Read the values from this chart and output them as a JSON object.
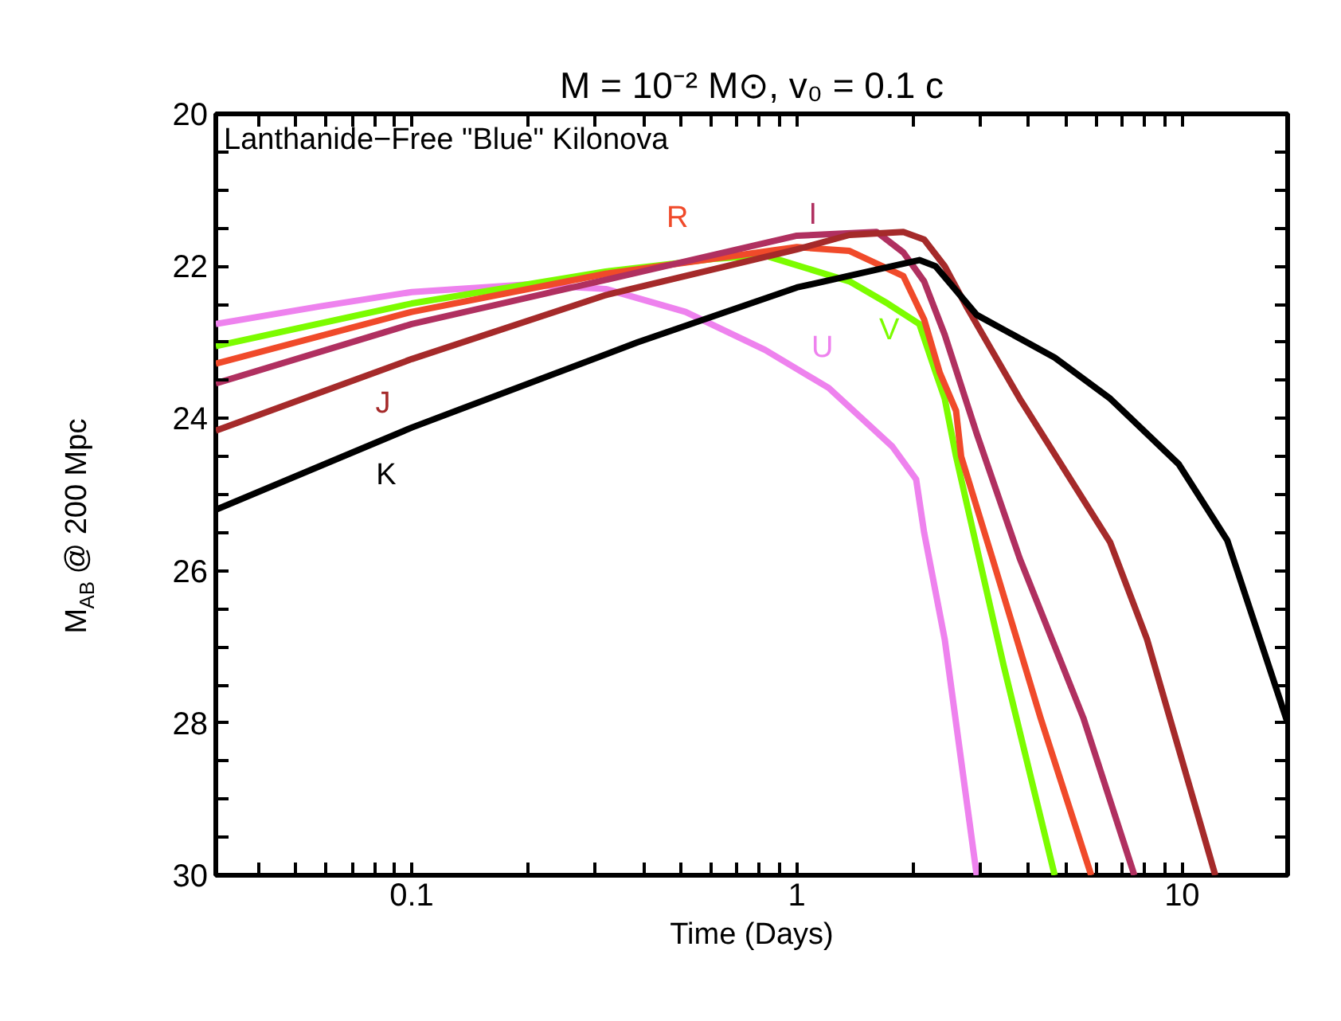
{
  "chart_data": {
    "type": "line",
    "title": "M = 10⁻² M⊙, v₀ = 0.1 c",
    "subtitle": "Lanthanide−Free \"Blue\" Kilonova",
    "xlabel": "Time (Days)",
    "ylabel": "M$_{AB}$ @ 200 Mpc",
    "log": "x",
    "grid": false,
    "line_style": "solid",
    "marker": "none",
    "xlim": [
      0.031,
      18.8
    ],
    "ylim": [
      30,
      20
    ],
    "xticks": [
      {
        "value": 0.04,
        "label": null
      },
      {
        "value": 0.05,
        "label": null
      },
      {
        "value": 0.06,
        "label": null
      },
      {
        "value": 0.07,
        "label": null
      },
      {
        "value": 0.08,
        "label": null
      },
      {
        "value": 0.09,
        "label": null
      },
      {
        "value": 0.1,
        "label": "0.1"
      },
      {
        "value": 0.2,
        "label": null
      },
      {
        "value": 0.3,
        "label": null
      },
      {
        "value": 0.4,
        "label": null
      },
      {
        "value": 0.5,
        "label": null
      },
      {
        "value": 0.6,
        "label": null
      },
      {
        "value": 0.7,
        "label": null
      },
      {
        "value": 0.8,
        "label": null
      },
      {
        "value": 0.9,
        "label": null
      },
      1,
      {
        "value": 2,
        "label": null
      },
      {
        "value": 3,
        "label": null
      },
      {
        "value": 4,
        "label": null
      },
      {
        "value": 5,
        "label": null
      },
      {
        "value": 6,
        "label": null
      },
      {
        "value": 7,
        "label": null
      },
      {
        "value": 8,
        "label": null
      },
      {
        "value": 9,
        "label": null
      },
      10
    ],
    "yticks": [
      20,
      {
        "value": 20.5,
        "label": null
      },
      {
        "value": 21,
        "label": null
      },
      {
        "value": 21.5,
        "label": null
      },
      22,
      {
        "value": 22.5,
        "label": null
      },
      {
        "value": 23,
        "label": null
      },
      {
        "value": 23.5,
        "label": null
      },
      24,
      {
        "value": 24.5,
        "label": null
      },
      {
        "value": 25,
        "label": null
      },
      {
        "value": 25.5,
        "label": null
      },
      26,
      {
        "value": 26.5,
        "label": null
      },
      {
        "value": 27,
        "label": null
      },
      {
        "value": 27.5,
        "label": null
      },
      28,
      {
        "value": 28.5,
        "label": null
      },
      {
        "value": 29,
        "label": null
      },
      {
        "value": 29.5,
        "label": null
      },
      30
    ],
    "series": [
      {
        "name": "U",
        "color": "#ee82ee",
        "x": [
          0.031,
          0.0575,
          0.1,
          0.199,
          0.319,
          0.514,
          0.827,
          1.21,
          1.77,
          2.04,
          2.14,
          2.42,
          2.93
        ],
        "values": [
          22.76,
          22.53,
          22.34,
          22.24,
          22.3,
          22.6,
          23.1,
          23.6,
          24.37,
          24.8,
          25.5,
          26.9,
          30
        ]
      },
      {
        "name": "V",
        "color": "#7cfc00",
        "x": [
          0.031,
          0.1,
          0.319,
          0.621,
          0.827,
          1.37,
          1.72,
          2.08,
          2.29,
          2.42,
          2.59,
          2.77,
          3.44,
          4.67
        ],
        "values": [
          23.05,
          22.49,
          22.07,
          21.9,
          21.86,
          22.2,
          22.49,
          22.76,
          23.39,
          23.74,
          24.5,
          25.15,
          27.24,
          30
        ]
      },
      {
        "name": "R",
        "color": "#f04a2a",
        "x": [
          0.031,
          0.1,
          0.319,
          1,
          1.37,
          1.89,
          2.14,
          2.35,
          2.59,
          2.67,
          3.22,
          4.29,
          5.81
        ],
        "values": [
          23.28,
          22.6,
          22.1,
          21.75,
          21.8,
          22.13,
          22.7,
          23.4,
          23.9,
          24.5,
          25.84,
          27.93,
          30
        ]
      },
      {
        "name": "I",
        "color": "#b03060",
        "x": [
          0.031,
          0.1,
          0.319,
          1,
          1.61,
          1.89,
          2.14,
          2.42,
          2.93,
          3.79,
          5.54,
          7.52
        ],
        "values": [
          23.54,
          22.76,
          22.18,
          21.6,
          21.55,
          21.82,
          22.2,
          22.9,
          24.2,
          25.84,
          27.93,
          30
        ]
      },
      {
        "name": "J",
        "color": "#a52a2a",
        "x": [
          0.031,
          0.1,
          0.319,
          1,
          1.37,
          1.89,
          2.14,
          2.42,
          2.77,
          3.79,
          6.51,
          8.11,
          12.2
        ],
        "values": [
          24.16,
          23.22,
          22.38,
          21.78,
          21.59,
          21.55,
          21.65,
          22.0,
          22.55,
          23.74,
          25.63,
          26.9,
          30
        ]
      },
      {
        "name": "K",
        "color": "#000000",
        "x": [
          0.031,
          0.1,
          0.386,
          1,
          1.77,
          2.08,
          2.29,
          2.93,
          4.67,
          6.51,
          9.8,
          13.1,
          18.8
        ],
        "values": [
          25.2,
          24.12,
          23.0,
          22.28,
          22.0,
          21.92,
          22.0,
          22.64,
          23.2,
          23.74,
          24.6,
          25.6,
          28.0
        ]
      }
    ]
  }
}
